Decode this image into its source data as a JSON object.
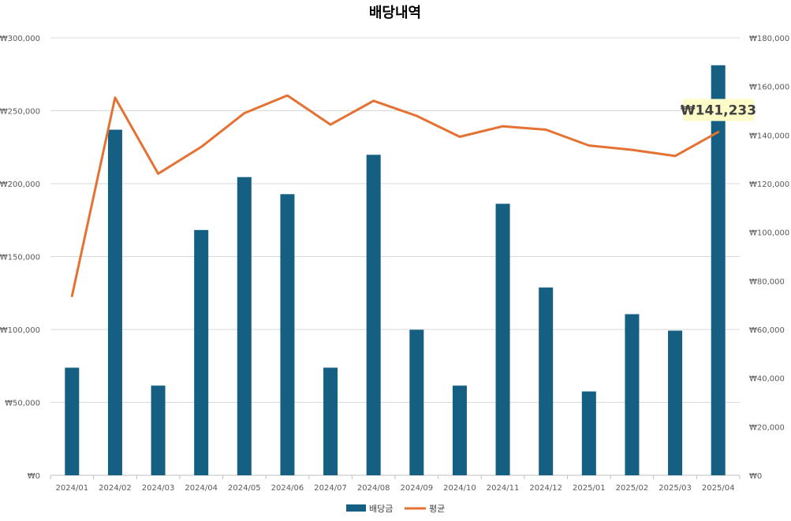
{
  "chart_data": {
    "type": "bar",
    "title": "배당내역",
    "categories": [
      "2024/01",
      "2024/02",
      "2024/03",
      "2024/04",
      "2024/05",
      "2024/06",
      "2024/07",
      "2024/08",
      "2024/09",
      "2024/10",
      "2024/11",
      "2024/12",
      "2025/01",
      "2025/02",
      "2025/03",
      "2025/04"
    ],
    "series": [
      {
        "name": "배당금",
        "type": "bar",
        "axis": "left",
        "color": "#155f82",
        "values": [
          73800,
          237000,
          61500,
          168200,
          204500,
          192800,
          73800,
          219800,
          99800,
          61500,
          186200,
          128800,
          57500,
          110500,
          99200,
          281200
        ]
      },
      {
        "name": "평균",
        "type": "line",
        "axis": "right",
        "color": "#e57133",
        "values": [
          73800,
          155400,
          124100,
          135100,
          149000,
          156300,
          144300,
          154100,
          147900,
          139300,
          143600,
          142200,
          135700,
          133900,
          131400,
          141233
        ]
      }
    ],
    "y_left": {
      "min": 0,
      "max": 300000,
      "step": 50000,
      "tick_labels": [
        "₩0",
        "₩50,000",
        "₩100,000",
        "₩150,000",
        "₩200,000",
        "₩250,000",
        "₩300,000"
      ]
    },
    "y_right": {
      "min": 0,
      "max": 180000,
      "step": 20000,
      "tick_labels": [
        "₩0",
        "₩20,000",
        "₩40,000",
        "₩60,000",
        "₩80,000",
        "₩100,000",
        "₩120,000",
        "₩140,000",
        "₩160,000",
        "₩180,000"
      ]
    },
    "annotation": {
      "text": "₩141,233",
      "series": "평균",
      "category": "2025/04",
      "background": "#fdfcc8"
    },
    "grid": true,
    "legend_position": "bottom"
  }
}
